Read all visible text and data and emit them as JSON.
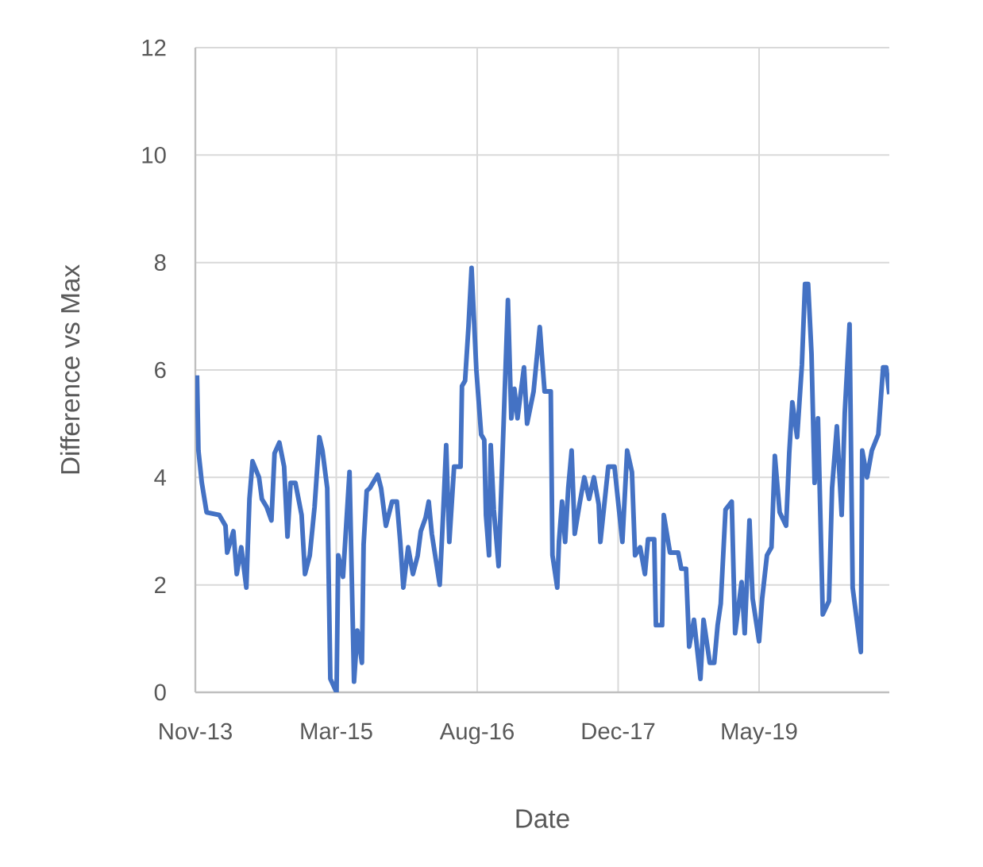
{
  "chart_data": {
    "type": "line",
    "xlabel": "Date",
    "ylabel": "Difference vs Max",
    "xlim": [
      "2013-11-15",
      "2020-08-12"
    ],
    "xticks": [
      {
        "value": "2013-11-15",
        "label": "Nov-13"
      },
      {
        "value": "2015-03-30",
        "label": "Mar-15"
      },
      {
        "value": "2016-08-11",
        "label": "Aug-16"
      },
      {
        "value": "2017-12-24",
        "label": "Dec-17"
      },
      {
        "value": "2019-05-08",
        "label": "May-19"
      }
    ],
    "ylim": [
      0,
      12
    ],
    "yticks": [
      0,
      2,
      4,
      6,
      8,
      10,
      12
    ],
    "grid": true,
    "marker": "none",
    "line_style": "solid",
    "series": [
      {
        "color": "#4472c4",
        "x": [
          "2013-11-21",
          "2013-11-26",
          "2013-12-08",
          "2013-12-25",
          "2014-02-08",
          "2014-03-02",
          "2014-03-08",
          "2014-03-30",
          "2014-04-11",
          "2014-04-27",
          "2014-05-15",
          "2014-05-26",
          "2014-06-06",
          "2014-06-29",
          "2014-07-09",
          "2014-07-26",
          "2014-08-12",
          "2014-08-23",
          "2014-09-09",
          "2014-09-26",
          "2014-10-08",
          "2014-10-19",
          "2014-11-05",
          "2014-11-16",
          "2014-11-27",
          "2014-12-09",
          "2014-12-26",
          "2015-01-12",
          "2015-01-29",
          "2015-02-09",
          "2015-02-26",
          "2015-03-09",
          "2015-03-31",
          "2015-04-06",
          "2015-04-23",
          "2015-05-16",
          "2015-06-01",
          "2015-06-13",
          "2015-06-29",
          "2015-07-05",
          "2015-07-16",
          "2015-07-27",
          "2015-08-24",
          "2015-09-05",
          "2015-09-22",
          "2015-10-14",
          "2015-10-31",
          "2015-11-12",
          "2015-11-23",
          "2015-12-10",
          "2015-12-27",
          "2016-01-13",
          "2016-01-24",
          "2016-02-10",
          "2016-02-21",
          "2016-03-03",
          "2016-03-31",
          "2016-04-12",
          "2016-04-23",
          "2016-05-04",
          "2016-05-21",
          "2016-06-13",
          "2016-06-18",
          "2016-06-29",
          "2016-07-11",
          "2016-07-22",
          "2016-08-08",
          "2016-08-25",
          "2016-09-05",
          "2016-09-11",
          "2016-09-22",
          "2016-09-28",
          "2016-10-09",
          "2016-10-26",
          "2016-11-28",
          "2016-12-10",
          "2016-12-21",
          "2017-01-01",
          "2017-01-24",
          "2017-02-04",
          "2017-02-27",
          "2017-03-21",
          "2017-04-07",
          "2017-04-29",
          "2017-05-05",
          "2017-05-22",
          "2017-05-28",
          "2017-06-08",
          "2017-06-19",
          "2017-06-30",
          "2017-07-12",
          "2017-07-23",
          "2017-08-09",
          "2017-08-26",
          "2017-09-12",
          "2017-09-29",
          "2017-10-16",
          "2017-10-22",
          "2017-11-19",
          "2017-12-11",
          "2018-01-08",
          "2018-01-25",
          "2018-02-11",
          "2018-02-22",
          "2018-03-12",
          "2018-03-29",
          "2018-04-09",
          "2018-05-01",
          "2018-05-07",
          "2018-05-29",
          "2018-06-04",
          "2018-06-26",
          "2018-07-25",
          "2018-08-05",
          "2018-08-22",
          "2018-09-02",
          "2018-09-19",
          "2018-10-12",
          "2018-10-23",
          "2018-11-14",
          "2018-11-30",
          "2018-12-12",
          "2018-12-23",
          "2019-01-09",
          "2019-01-31",
          "2019-02-12",
          "2019-03-07",
          "2019-03-18",
          "2019-04-04",
          "2019-04-15",
          "2019-05-08",
          "2019-05-19",
          "2019-06-05",
          "2019-06-21",
          "2019-07-03",
          "2019-07-20",
          "2019-08-12",
          "2019-08-23",
          "2019-09-03",
          "2019-09-20",
          "2019-10-07",
          "2019-10-18",
          "2019-10-29",
          "2019-11-10",
          "2019-11-21",
          "2019-12-03",
          "2019-12-20",
          "2020-01-11",
          "2020-01-22",
          "2020-02-08",
          "2020-02-25",
          "2020-03-07",
          "2020-03-24",
          "2020-04-04",
          "2020-05-03",
          "2020-05-08",
          "2020-05-25",
          "2020-06-11",
          "2020-07-04",
          "2020-07-21",
          "2020-08-01",
          "2020-08-12"
        ],
        "values": [
          5.9,
          4.5,
          3.9,
          3.35,
          3.3,
          3.1,
          2.6,
          3.0,
          2.2,
          2.7,
          1.95,
          3.6,
          4.3,
          4.0,
          3.6,
          3.45,
          3.2,
          4.45,
          4.65,
          4.2,
          2.9,
          3.9,
          3.9,
          3.6,
          3.3,
          2.2,
          2.55,
          3.45,
          4.75,
          4.5,
          3.8,
          0.25,
          0,
          2.55,
          2.15,
          4.1,
          0.2,
          1.15,
          0.55,
          2.75,
          3.75,
          3.8,
          4.05,
          3.8,
          3.1,
          3.55,
          3.55,
          2.8,
          1.95,
          2.7,
          2.2,
          2.55,
          3.0,
          3.25,
          3.55,
          2.95,
          2.0,
          3.3,
          4.6,
          2.8,
          4.2,
          4.2,
          5.7,
          5.8,
          6.8,
          7.9,
          6.0,
          4.8,
          4.7,
          3.3,
          2.55,
          4.6,
          3.4,
          2.35,
          7.3,
          5.1,
          5.65,
          5.1,
          6.05,
          5.0,
          5.6,
          6.8,
          5.6,
          5.6,
          2.55,
          1.95,
          2.8,
          3.55,
          2.8,
          3.8,
          4.5,
          2.95,
          3.5,
          4.0,
          3.6,
          4.0,
          3.5,
          2.8,
          4.2,
          4.2,
          2.8,
          4.5,
          4.1,
          2.55,
          2.7,
          2.2,
          2.85,
          2.85,
          1.25,
          1.25,
          3.3,
          2.6,
          2.6,
          2.3,
          2.3,
          0.85,
          1.35,
          0.25,
          1.35,
          0.55,
          0.55,
          1.25,
          1.65,
          3.4,
          3.55,
          1.1,
          2.05,
          1.1,
          3.2,
          1.75,
          0.95,
          1.75,
          2.55,
          2.7,
          4.4,
          3.35,
          3.1,
          4.45,
          5.4,
          4.75,
          6.1,
          7.6,
          7.6,
          6.3,
          3.9,
          5.1,
          1.45,
          1.7,
          3.8,
          4.95,
          3.3,
          5.2,
          6.85,
          1.95,
          0.75,
          4.5,
          4.0,
          4.5,
          4.8,
          6.05,
          6.05,
          5.55
        ]
      }
    ]
  }
}
